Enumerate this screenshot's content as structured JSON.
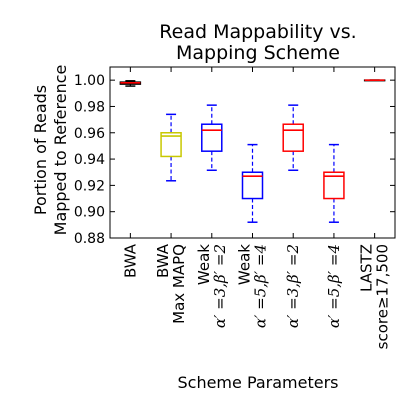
{
  "chart_data": {
    "type": "box",
    "title": [
      "Read Mappability vs.",
      "Mapping Scheme"
    ],
    "xlabel": "Scheme Parameters",
    "ylabel": [
      "Portion of Reads",
      "Mapped to Reference"
    ],
    "ylim": [
      0.88,
      1.01
    ],
    "yticks": [
      "0.88",
      "0.90",
      "0.92",
      "0.94",
      "0.96",
      "0.98",
      "1.00"
    ],
    "grid": false,
    "categories": [
      {
        "lines": [
          {
            "text": "BWA"
          }
        ]
      },
      {
        "lines": [
          {
            "text": "BWA"
          },
          {
            "text": "Max MAPQ"
          }
        ]
      },
      {
        "lines": [
          {
            "text": "Weak"
          },
          {
            "text": "α′ =3,β′ =2",
            "math": true
          }
        ]
      },
      {
        "lines": [
          {
            "text": "Weak"
          },
          {
            "text": "α′ =5,β′ =4",
            "math": true
          }
        ]
      },
      {
        "lines": [
          {
            "text": "α′ =3,β′ =2",
            "math": true
          }
        ]
      },
      {
        "lines": [
          {
            "text": "α′ =5,β′ =4",
            "math": true
          }
        ]
      },
      {
        "lines": [
          {
            "text": "LASTZ"
          },
          {
            "text": "score≥17,500"
          }
        ]
      }
    ],
    "boxes": [
      {
        "whisker_low": 0.9955,
        "q1": 0.997,
        "median": 0.998,
        "q3": 0.9985,
        "whisker_high": 0.9995,
        "box_color": "#000000",
        "median_color": "#ff0000",
        "whisker_color": "#000000"
      },
      {
        "whisker_low": 0.9235,
        "q1": 0.942,
        "median": 0.9575,
        "q3": 0.96,
        "whisker_high": 0.974,
        "box_color": "#c8c800",
        "median_color": "#c8c800",
        "whisker_color": "#0000ff"
      },
      {
        "whisker_low": 0.9315,
        "q1": 0.946,
        "median": 0.962,
        "q3": 0.9665,
        "whisker_high": 0.981,
        "box_color": "#0000ff",
        "median_color": "#ff0000",
        "whisker_color": "#0000ff"
      },
      {
        "whisker_low": 0.892,
        "q1": 0.91,
        "median": 0.927,
        "q3": 0.93,
        "whisker_high": 0.951,
        "box_color": "#0000ff",
        "median_color": "#ff0000",
        "whisker_color": "#0000ff"
      },
      {
        "whisker_low": 0.9315,
        "q1": 0.946,
        "median": 0.962,
        "q3": 0.9665,
        "whisker_high": 0.981,
        "box_color": "#ff0000",
        "median_color": "#ff0000",
        "whisker_color": "#0000ff"
      },
      {
        "whisker_low": 0.892,
        "q1": 0.91,
        "median": 0.927,
        "q3": 0.93,
        "whisker_high": 0.951,
        "box_color": "#ff0000",
        "median_color": "#ff0000",
        "whisker_color": "#0000ff"
      },
      {
        "whisker_low": 1.0,
        "q1": 1.0,
        "median": 1.0,
        "q3": 1.0,
        "whisker_high": 1.0,
        "box_color": "#000000",
        "median_color": "#ff0000",
        "whisker_color": "#000000"
      }
    ]
  }
}
